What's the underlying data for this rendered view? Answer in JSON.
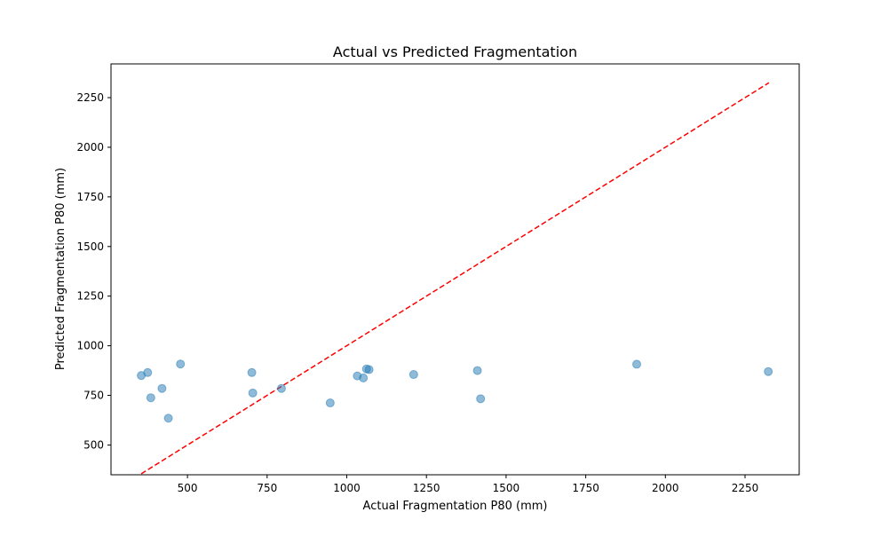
{
  "chart_data": {
    "type": "scatter",
    "title": "Actual vs Predicted Fragmentation",
    "xlabel": "Actual Fragmentation P80 (mm)",
    "ylabel": "Predicted Fragmentation P80 (mm)",
    "xlim": [
      260,
      2420
    ],
    "ylim": [
      350,
      2420
    ],
    "xticks": [
      500,
      750,
      1000,
      1250,
      1500,
      1750,
      2000,
      2250
    ],
    "yticks": [
      500,
      750,
      1000,
      1250,
      1500,
      1750,
      2000,
      2250
    ],
    "grid": false,
    "point_color": "#1f77b4",
    "point_alpha": 0.5,
    "reference_line": {
      "style": "dashed",
      "color": "#ff0000",
      "from": [
        355,
        355
      ],
      "to": [
        2325,
        2325
      ]
    },
    "points": [
      {
        "x": 355,
        "y": 850
      },
      {
        "x": 375,
        "y": 865
      },
      {
        "x": 385,
        "y": 738
      },
      {
        "x": 420,
        "y": 785
      },
      {
        "x": 440,
        "y": 635
      },
      {
        "x": 478,
        "y": 908
      },
      {
        "x": 702,
        "y": 865
      },
      {
        "x": 705,
        "y": 762
      },
      {
        "x": 795,
        "y": 785
      },
      {
        "x": 948,
        "y": 712
      },
      {
        "x": 1033,
        "y": 848
      },
      {
        "x": 1052,
        "y": 838
      },
      {
        "x": 1062,
        "y": 883
      },
      {
        "x": 1070,
        "y": 880
      },
      {
        "x": 1210,
        "y": 855
      },
      {
        "x": 1410,
        "y": 875
      },
      {
        "x": 1420,
        "y": 733
      },
      {
        "x": 1910,
        "y": 907
      },
      {
        "x": 2323,
        "y": 870
      }
    ]
  }
}
